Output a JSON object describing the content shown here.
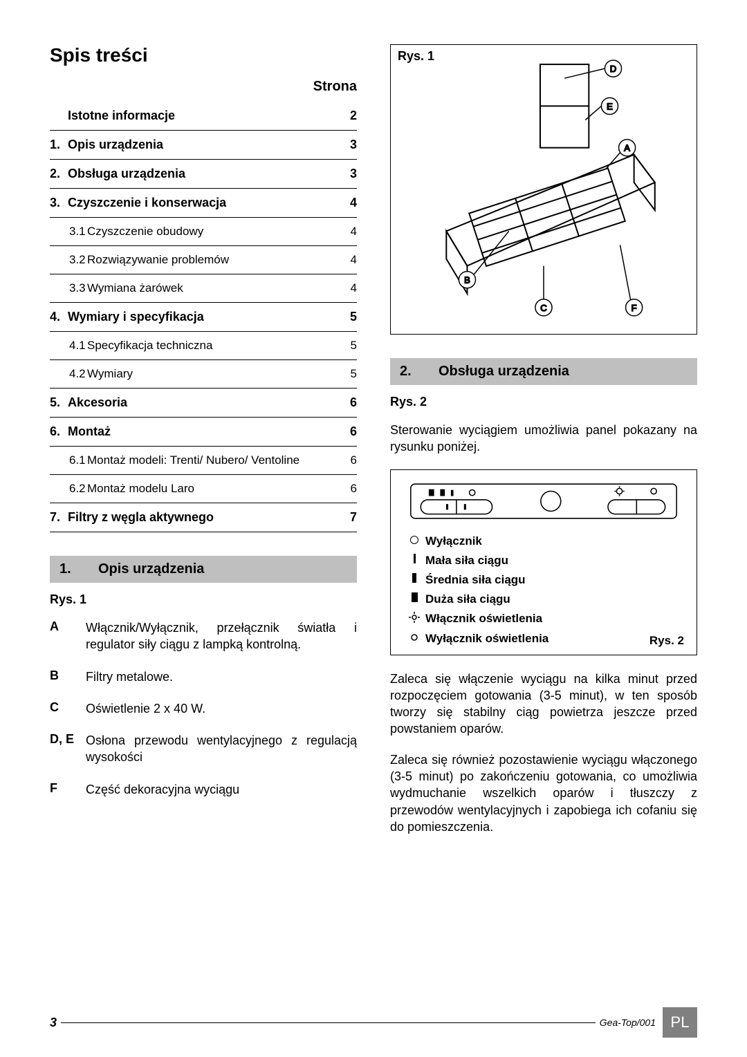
{
  "toc": {
    "title": "Spis treści",
    "page_label": "Strona",
    "items": [
      {
        "num": "",
        "label": "Istotne informacje",
        "page": "2",
        "level": 0
      },
      {
        "num": "1.",
        "label": "Opis urządzenia",
        "page": "3",
        "level": 0
      },
      {
        "num": "2.",
        "label": "Obsługa urządzenia",
        "page": "3",
        "level": 0
      },
      {
        "num": "3.",
        "label": "Czyszczenie i konserwacja",
        "page": "4",
        "level": 0
      },
      {
        "num": "3.1",
        "label": "Czyszczenie obudowy",
        "page": "4",
        "level": 1
      },
      {
        "num": "3.2",
        "label": "Rozwiązywanie problemów",
        "page": "4",
        "level": 1
      },
      {
        "num": "3.3",
        "label": "Wymiana żarówek",
        "page": "4",
        "level": 1
      },
      {
        "num": "4.",
        "label": "Wymiary i specyfikacja",
        "page": "5",
        "level": 0
      },
      {
        "num": "4.1",
        "label": "Specyfikacja techniczna",
        "page": "5",
        "level": 1
      },
      {
        "num": "4.2",
        "label": "Wymiary",
        "page": "5",
        "level": 1
      },
      {
        "num": "5.",
        "label": "Akcesoria",
        "page": "6",
        "level": 0
      },
      {
        "num": "6.",
        "label": "Montaż",
        "page": "6",
        "level": 0
      },
      {
        "num": "6.1",
        "label": "Montaż modeli: Trenti/ Nubero/ Ventoline",
        "page": "6",
        "level": 1
      },
      {
        "num": "6.2",
        "label": "Montaż modelu Laro",
        "page": "6",
        "level": 1
      },
      {
        "num": "7.",
        "label": "Filtry z węgla aktywnego",
        "page": "7",
        "level": 0
      }
    ]
  },
  "section1": {
    "num": "1.",
    "title": "Opis urządzenia",
    "rys_label": "Rys. 1",
    "defs": [
      {
        "k": "A",
        "v": "Włącznik/Wyłącznik, przełącznik światła i regulator siły ciągu z lampką kontrolną."
      },
      {
        "k": "B",
        "v": "Filtry metalowe."
      },
      {
        "k": "C",
        "v": "Oświetlenie 2 x 40 W."
      },
      {
        "k": "D, E",
        "v": "Osłona przewodu wentylacyjnego z regulacją wysokości"
      },
      {
        "k": "F",
        "v": "Część dekoracyjna wyciągu"
      }
    ]
  },
  "fig1": {
    "label": "Rys. 1",
    "markers": [
      "A",
      "B",
      "C",
      "D",
      "E",
      "F"
    ]
  },
  "section2": {
    "num": "2.",
    "title": "Obsługa urządzenia",
    "rys_label": "Rys. 2",
    "intro": "Sterowanie wyciągiem umożliwia panel pokazany na rysunku poniżej.",
    "legend": [
      {
        "sym": "○",
        "label": "Wyłącznik"
      },
      {
        "sym": "▮",
        "label": "Mała siła ciągu",
        "thin": true
      },
      {
        "sym": "▮",
        "label": "Średnia siła ciągu",
        "med": true
      },
      {
        "sym": "▮",
        "label": "Duża siła ciągu"
      },
      {
        "sym": "☼",
        "label": "Włącznik oświetlenia"
      },
      {
        "sym": "✺",
        "label": "Wyłącznik oświetlenia"
      }
    ],
    "rys2_label": "Rys. 2",
    "p1": "Zaleca się włączenie wyciągu na kilka minut przed rozpoczęciem gotowania (3-5 minut), w ten sposób tworzy się stabilny ciąg powietrza jeszcze przed powstaniem oparów.",
    "p2": "Zaleca się również pozostawienie wyciągu włączonego (3-5 minut) po zakończeniu gotowania, co umożliwia wydmuchanie wszelkich oparów i tłuszczy z przewodów wentylacyjnych i zapobiega ich cofaniu się do pomieszczenia."
  },
  "footer": {
    "page": "3",
    "code": "Gea-Top/001",
    "lang": "PL"
  },
  "colors": {
    "head_bg": "#bfbfbf",
    "badge_bg": "#808080"
  }
}
